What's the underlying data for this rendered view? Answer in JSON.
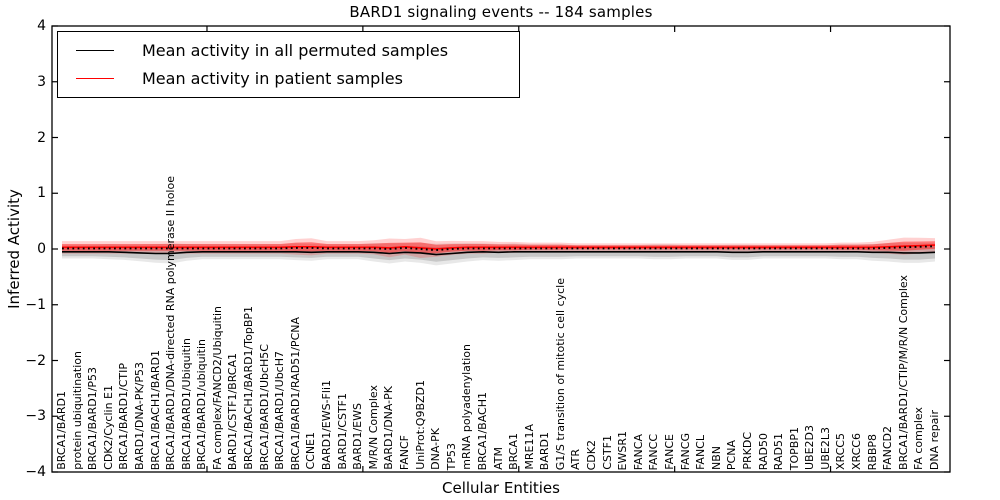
{
  "chart_data": {
    "type": "line",
    "title": "BARD1 signaling events -- 184 samples",
    "xlabel": "Cellular Entities",
    "ylabel": "Inferred Activity",
    "ylim": [
      -4,
      4
    ],
    "ytick_labels": [
      "4",
      "3",
      "2",
      "1",
      "0",
      "−1",
      "−2",
      "−3",
      "−4"
    ],
    "grid": false,
    "legend_position": "upper left",
    "categories": [
      "BRCA1/BARD1",
      "protein ubiquitination",
      "BRCA1/BARD1/P53",
      "CDK2/Cyclin E1",
      "BRCA1/BARD1/CTIP",
      "BARD1/DNA-PK/P53",
      "BRCA1/BACH1/BARD1",
      "BRCA1/BARD1/DNA-directed RNA polymerase II holoe",
      "BRCA1/BARD1/Ubiquitin",
      "BRCA1/BARD1/ubiquitin",
      "FA complex/FANCD2/Ubiquitin",
      "BARD1/CSTF1/BRCA1",
      "BRCA1/BACH1/BARD1/TopBP1",
      "BRCA1/BARD1/UbcH5C",
      "BRCA1/BARD1/UbcH7",
      "BRCA1/BARD1/RAD51/PCNA",
      "CCNE1",
      "BARD1/EWS-Fli1",
      "BARD1/CSTF1",
      "BARD1/EWS",
      "M/R/N Complex",
      "BARD1/DNA-PK",
      "FANCF",
      "UniProt:Q9BZD1",
      "DNA-PK",
      "TP53",
      "mRNA polyadenylation",
      "BRCA1/BACH1",
      "ATM",
      "BRCA1",
      "MRE11A",
      "BARD1",
      "G1/S transition of mitotic cell cycle",
      "ATR",
      "CDK2",
      "CSTF1",
      "EWSR1",
      "FANCA",
      "FANCC",
      "FANCE",
      "FANCG",
      "FANCL",
      "NBN",
      "PCNA",
      "PRKDC",
      "RAD50",
      "RAD51",
      "TOPBP1",
      "UBE2D3",
      "UBE2L3",
      "XRCC5",
      "XRCC6",
      "RBBP8",
      "FANCD2",
      "BRCA1/BARD1/CTIP/M/R/N Complex",
      "FA complex",
      "DNA repair"
    ],
    "series": [
      {
        "name": "Mean activity in all permuted samples",
        "color": "#000000",
        "band_color": "#000000",
        "values": [
          -0.05,
          -0.05,
          -0.05,
          -0.05,
          -0.06,
          -0.07,
          -0.08,
          -0.08,
          -0.06,
          -0.05,
          -0.05,
          -0.05,
          -0.05,
          -0.05,
          -0.05,
          -0.05,
          -0.06,
          -0.05,
          -0.05,
          -0.05,
          -0.06,
          -0.08,
          -0.06,
          -0.07,
          -0.1,
          -0.08,
          -0.06,
          -0.05,
          -0.06,
          -0.05,
          -0.05,
          -0.05,
          -0.05,
          -0.05,
          -0.05,
          -0.05,
          -0.05,
          -0.05,
          -0.05,
          -0.05,
          -0.05,
          -0.05,
          -0.05,
          -0.06,
          -0.06,
          -0.05,
          -0.05,
          -0.05,
          -0.05,
          -0.05,
          -0.05,
          -0.05,
          -0.06,
          -0.06,
          -0.07,
          -0.07,
          -0.06
        ],
        "band_half_widths": [
          0.08,
          0.08,
          0.08,
          0.09,
          0.09,
          0.1,
          0.11,
          0.12,
          0.1,
          0.09,
          0.09,
          0.09,
          0.09,
          0.09,
          0.09,
          0.1,
          0.1,
          0.09,
          0.09,
          0.09,
          0.11,
          0.12,
          0.11,
          0.12,
          0.13,
          0.12,
          0.11,
          0.1,
          0.1,
          0.1,
          0.09,
          0.09,
          0.09,
          0.08,
          0.08,
          0.08,
          0.08,
          0.08,
          0.09,
          0.09,
          0.08,
          0.08,
          0.08,
          0.09,
          0.09,
          0.08,
          0.08,
          0.08,
          0.08,
          0.08,
          0.09,
          0.09,
          0.1,
          0.11,
          0.12,
          0.12,
          0.11
        ]
      },
      {
        "name": "Mean activity in patient samples",
        "color": "#ff0000",
        "band_color": "#ff0000",
        "values": [
          0.03,
          0.03,
          0.03,
          0.03,
          0.03,
          0.03,
          0.03,
          0.03,
          0.03,
          0.03,
          0.03,
          0.03,
          0.03,
          0.03,
          0.03,
          0.04,
          0.04,
          0.03,
          0.03,
          0.03,
          0.03,
          0.02,
          0.04,
          0.02,
          0.0,
          0.02,
          0.03,
          0.03,
          0.03,
          0.03,
          0.03,
          0.03,
          0.03,
          0.03,
          0.03,
          0.03,
          0.03,
          0.03,
          0.03,
          0.03,
          0.03,
          0.03,
          0.03,
          0.03,
          0.03,
          0.03,
          0.03,
          0.03,
          0.03,
          0.03,
          0.03,
          0.03,
          0.03,
          0.04,
          0.05,
          0.06,
          0.07
        ],
        "band_half_widths": [
          0.08,
          0.08,
          0.08,
          0.08,
          0.08,
          0.08,
          0.08,
          0.08,
          0.08,
          0.08,
          0.08,
          0.08,
          0.08,
          0.08,
          0.08,
          0.1,
          0.11,
          0.08,
          0.08,
          0.08,
          0.09,
          0.12,
          0.1,
          0.13,
          0.1,
          0.09,
          0.08,
          0.08,
          0.07,
          0.07,
          0.06,
          0.06,
          0.06,
          0.05,
          0.05,
          0.05,
          0.05,
          0.05,
          0.05,
          0.05,
          0.05,
          0.05,
          0.05,
          0.05,
          0.05,
          0.05,
          0.05,
          0.05,
          0.05,
          0.05,
          0.06,
          0.06,
          0.07,
          0.09,
          0.11,
          0.1,
          0.09
        ]
      }
    ]
  }
}
